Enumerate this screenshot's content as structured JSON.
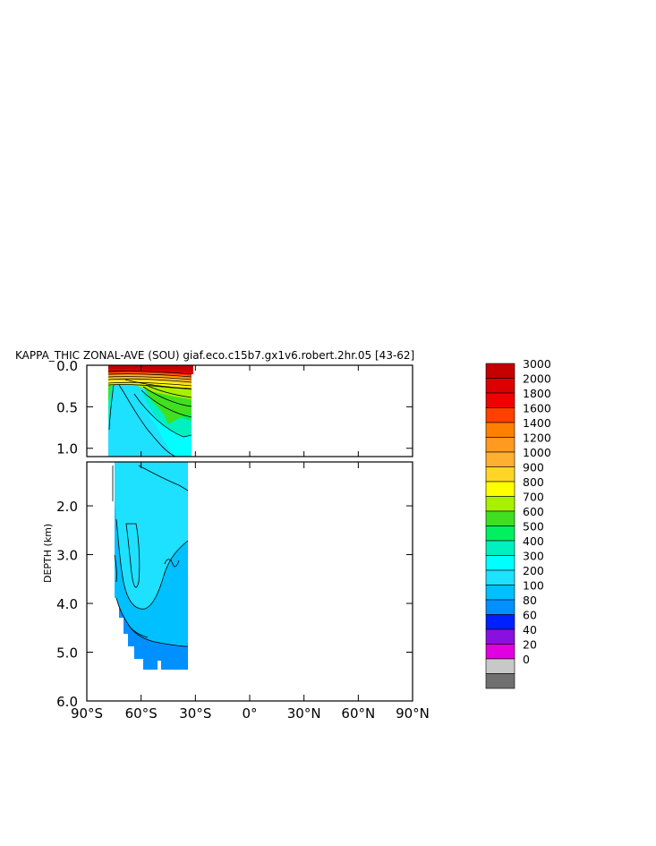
{
  "chart_data": {
    "type": "heatmap",
    "title": "KAPPA_THIC ZONAL-AVE (SOU) giaf.eco.c15b7.gx1v6.robert.2hr.05 [43-62]",
    "ylabel": "DEPTH (km)",
    "xlabel": "",
    "x_ticks": [
      {
        "value": -90,
        "label": "90°S"
      },
      {
        "value": -60,
        "label": "60°S"
      },
      {
        "value": -30,
        "label": "30°S"
      },
      {
        "value": 0,
        "label": "0°"
      },
      {
        "value": 30,
        "label": "30°N"
      },
      {
        "value": 60,
        "label": "60°N"
      },
      {
        "value": 90,
        "label": "90°N"
      }
    ],
    "y_ticks_upper": [
      {
        "value": 0.0,
        "label": "0.0"
      },
      {
        "value": 0.5,
        "label": "0.5"
      },
      {
        "value": 1.0,
        "label": "1.0"
      }
    ],
    "y_ticks_lower": [
      {
        "value": 2.0,
        "label": "2.0"
      },
      {
        "value": 3.0,
        "label": "3.0"
      },
      {
        "value": 4.0,
        "label": "4.0"
      },
      {
        "value": 5.0,
        "label": "5.0"
      },
      {
        "value": 6.0,
        "label": "6.0"
      }
    ],
    "xlim": [
      -90,
      90
    ],
    "ylim_upper": [
      0,
      1.1
    ],
    "ylim_lower": [
      1.1,
      6.0
    ],
    "colorbar": [
      {
        "label": "3000",
        "color": "#c40000"
      },
      {
        "label": "2000",
        "color": "#dd0000"
      },
      {
        "label": "1800",
        "color": "#f00000"
      },
      {
        "label": "1600",
        "color": "#ff4000"
      },
      {
        "label": "1400",
        "color": "#ff8000"
      },
      {
        "label": "1200",
        "color": "#ff9a20"
      },
      {
        "label": "1000",
        "color": "#ffb030"
      },
      {
        "label": "900",
        "color": "#ffd528"
      },
      {
        "label": "800",
        "color": "#ffff00"
      },
      {
        "label": "700",
        "color": "#a8f000"
      },
      {
        "label": "600",
        "color": "#40e020"
      },
      {
        "label": "500",
        "color": "#00f060"
      },
      {
        "label": "400",
        "color": "#00f0c0"
      },
      {
        "label": "300",
        "color": "#00ffff"
      },
      {
        "label": "200",
        "color": "#1ee0ff"
      },
      {
        "label": "100",
        "color": "#00c0ff"
      },
      {
        "label": "80",
        "color": "#0090ff"
      },
      {
        "label": "60",
        "color": "#0020ff"
      },
      {
        "label": "40",
        "color": "#8a10e0"
      },
      {
        "label": "20",
        "color": "#e000e0"
      },
      {
        "label": "0",
        "color": "#c8c8c8"
      },
      {
        "label": "",
        "color": "#707070"
      }
    ]
  }
}
